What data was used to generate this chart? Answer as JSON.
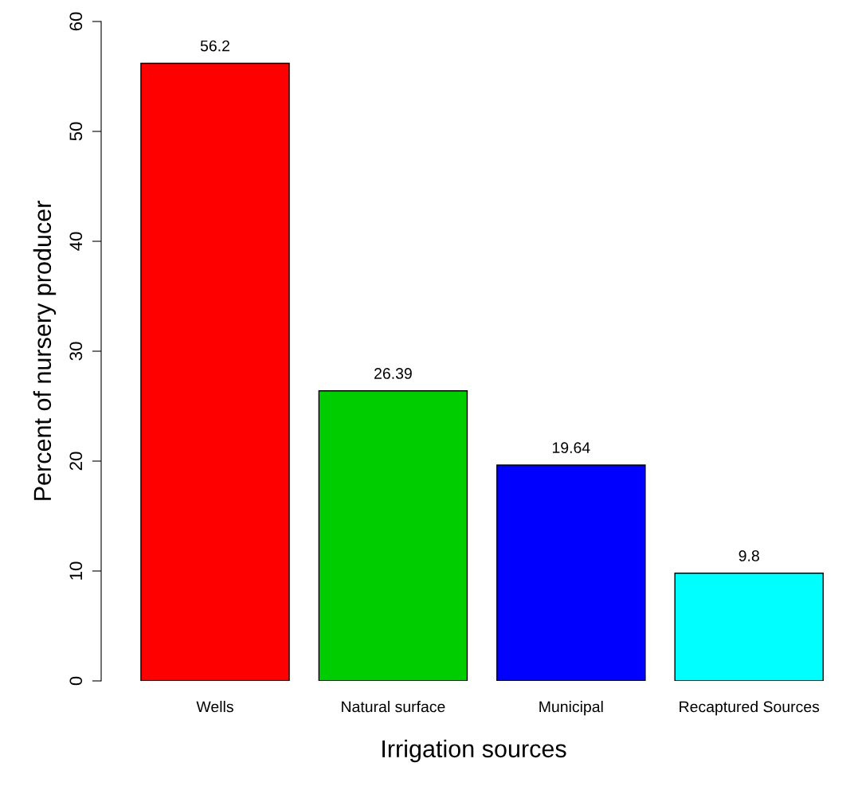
{
  "chart_data": {
    "type": "bar",
    "xlabel": "Irrigation sources",
    "ylabel": "Percent of nursery producer",
    "categories": [
      "Wells",
      "Natural surface",
      "Municipal",
      "Recaptured Sources"
    ],
    "values": [
      56.2,
      26.39,
      19.64,
      9.8
    ],
    "colors": [
      "#ff0000",
      "#00cd00",
      "#0000ff",
      "#00ffff"
    ],
    "ylim": [
      0,
      60
    ],
    "yticks": [
      0,
      10,
      20,
      30,
      40,
      50,
      60
    ],
    "data_labels": true,
    "grid": false,
    "legend": false
  }
}
